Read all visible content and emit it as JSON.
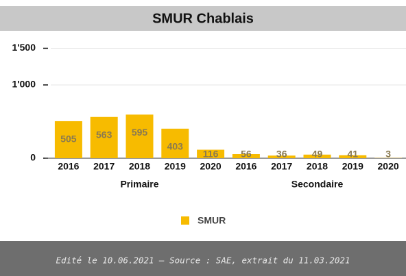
{
  "chart_data": {
    "type": "bar",
    "title": "SMUR Chablais",
    "categories": [
      "2016",
      "2017",
      "2018",
      "2019",
      "2020",
      "2016",
      "2017",
      "2018",
      "2019",
      "2020"
    ],
    "groups": [
      "Primaire",
      "Secondaire"
    ],
    "series": [
      {
        "name": "SMUR",
        "color": "#f7bb00",
        "values": [
          505,
          563,
          595,
          403,
          116,
          56,
          36,
          49,
          41,
          3
        ]
      }
    ],
    "ylim": [
      0,
      1500
    ],
    "yticks": [
      {
        "value": 0,
        "label": "0"
      },
      {
        "value": 1000,
        "label": "1'000"
      },
      {
        "value": 1500,
        "label": "1'500"
      }
    ],
    "grid": true,
    "legend": "bottom",
    "footer": "Edité le 10.06.2021 – Source : SAE, extrait du 11.03.2021"
  }
}
